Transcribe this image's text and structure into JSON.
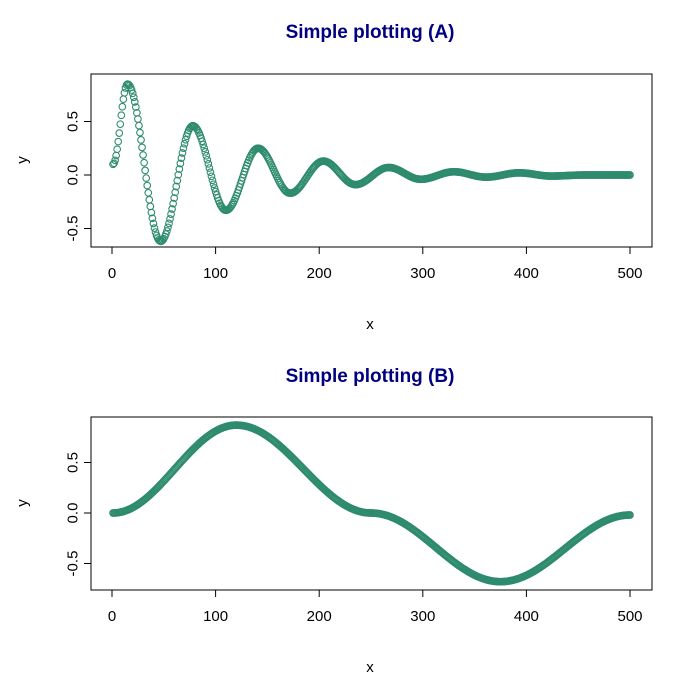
{
  "chart_data": [
    {
      "type": "scatter",
      "title": "Simple plotting (A)",
      "xlabel": "x",
      "ylabel": "y",
      "xlim": [
        0,
        500
      ],
      "ylim": [
        -0.7,
        0.9
      ],
      "xticks": [
        0,
        100,
        200,
        300,
        400,
        500
      ],
      "xtick_labels": [
        "0",
        "100",
        "200",
        "300",
        "400",
        "500"
      ],
      "yticks": [
        -0.5,
        0.0,
        0.5
      ],
      "ytick_labels": [
        "-0.5",
        "0.0",
        "0.5"
      ],
      "grid": false,
      "marker": "open-circle",
      "color": "#2E8B6E",
      "series": [
        {
          "x_range": [
            1,
            500
          ],
          "n_points": 500,
          "shape": "damped sine: peaks 0.85 at x≈15, 0.46 at x≈78, 0.25 at x≈141, 0.13 at x≈204, 0.07 at x≈267; troughs -0.62 at x≈47, -0.33 at x≈110, -0.17 at x≈172, -0.09 at x≈235; ends near 0.0 at x=500",
          "x": [
            1,
            15,
            47,
            78,
            110,
            141,
            172,
            204,
            235,
            267,
            298,
            330,
            361,
            393,
            424,
            456,
            500
          ],
          "y": [
            0.1,
            0.85,
            -0.62,
            0.46,
            -0.33,
            0.25,
            -0.17,
            0.13,
            -0.09,
            0.07,
            -0.04,
            0.03,
            -0.02,
            0.02,
            -0.01,
            0.0,
            0.0
          ]
        }
      ]
    },
    {
      "type": "scatter",
      "title": "Simple plotting (B)",
      "xlabel": "x",
      "ylabel": "y",
      "xlim": [
        0,
        500
      ],
      "ylim": [
        -0.75,
        0.95
      ],
      "xticks": [
        0,
        100,
        200,
        300,
        400,
        500
      ],
      "xtick_labels": [
        "0",
        "100",
        "200",
        "300",
        "400",
        "500"
      ],
      "yticks": [
        -0.5,
        0.0,
        0.5
      ],
      "ytick_labels": [
        "-0.5",
        "0.0",
        "0.5"
      ],
      "grid": false,
      "marker": "open-circle",
      "color": "#2E8B6E",
      "series": [
        {
          "x_range": [
            1,
            500
          ],
          "n_points": 500,
          "shape": "one sine-like cycle: starts 0.0 at x=1, peak 0.87 at x≈120, crosses 0 near x≈250, trough -0.68 at x≈375, ends -0.02 at x=500",
          "x": [
            1,
            120,
            250,
            375,
            500
          ],
          "y": [
            0.0,
            0.87,
            0.0,
            -0.68,
            -0.02
          ]
        }
      ]
    }
  ]
}
